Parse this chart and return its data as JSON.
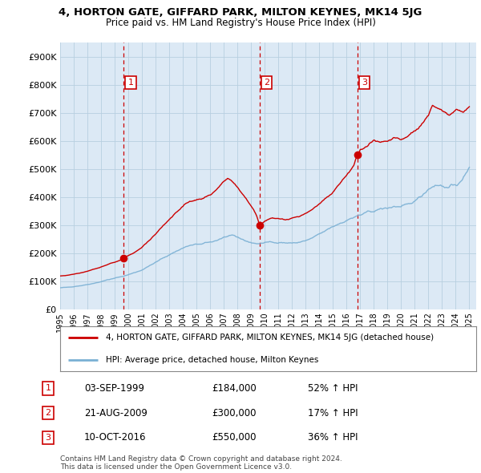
{
  "title": "4, HORTON GATE, GIFFARD PARK, MILTON KEYNES, MK14 5JG",
  "subtitle": "Price paid vs. HM Land Registry's House Price Index (HPI)",
  "ylim": [
    0,
    950000
  ],
  "yticks": [
    0,
    100000,
    200000,
    300000,
    400000,
    500000,
    600000,
    700000,
    800000,
    900000
  ],
  "ytick_labels": [
    "£0",
    "£100K",
    "£200K",
    "£300K",
    "£400K",
    "£500K",
    "£600K",
    "£700K",
    "£800K",
    "£900K"
  ],
  "purchases": [
    {
      "date": 1999.67,
      "price": 184000,
      "label": "1"
    },
    {
      "date": 2009.64,
      "price": 300000,
      "label": "2"
    },
    {
      "date": 2016.78,
      "price": 550000,
      "label": "3"
    }
  ],
  "vline_dates": [
    1999.67,
    2009.64,
    2016.78
  ],
  "legend_entries": [
    "4, HORTON GATE, GIFFARD PARK, MILTON KEYNES, MK14 5JG (detached house)",
    "HPI: Average price, detached house, Milton Keynes"
  ],
  "table_data": [
    [
      "1",
      "03-SEP-1999",
      "£184,000",
      "52% ↑ HPI"
    ],
    [
      "2",
      "21-AUG-2009",
      "£300,000",
      "17% ↑ HPI"
    ],
    [
      "3",
      "10-OCT-2016",
      "£550,000",
      "36% ↑ HPI"
    ]
  ],
  "footnote": "Contains HM Land Registry data © Crown copyright and database right 2024.\nThis data is licensed under the Open Government Licence v3.0.",
  "line_color_red": "#cc0000",
  "line_color_blue": "#7ab0d4",
  "vline_color": "#cc0000",
  "chart_bg": "#dce9f5",
  "background_color": "#ffffff",
  "grid_color": "#b8cfe0"
}
